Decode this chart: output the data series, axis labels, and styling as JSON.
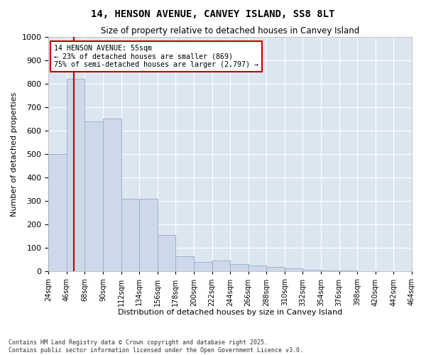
{
  "title": "14, HENSON AVENUE, CANVEY ISLAND, SS8 8LT",
  "subtitle": "Size of property relative to detached houses in Canvey Island",
  "xlabel": "Distribution of detached houses by size in Canvey Island",
  "ylabel": "Number of detached properties",
  "annotation_lines": [
    "14 HENSON AVENUE: 55sqm",
    "← 23% of detached houses are smaller (869)",
    "75% of semi-detached houses are larger (2,797) →"
  ],
  "property_sqm": 55,
  "bar_color": "#cdd9ea",
  "bar_edge_color": "#9ab3cc",
  "vline_color": "#c00000",
  "annotation_box_color": "#c00000",
  "background_color": "#dce6f1",
  "grid_color": "#ffffff",
  "fig_background": "#ffffff",
  "bins": [
    24,
    46,
    68,
    90,
    112,
    134,
    156,
    178,
    200,
    222,
    244,
    266,
    288,
    310,
    332,
    354,
    376,
    398,
    420,
    442,
    464
  ],
  "values": [
    500,
    820,
    640,
    650,
    310,
    310,
    155,
    65,
    40,
    47,
    30,
    25,
    18,
    12,
    8,
    5,
    3,
    2,
    1,
    1
  ],
  "ylim": [
    0,
    1000
  ],
  "yticks": [
    0,
    100,
    200,
    300,
    400,
    500,
    600,
    700,
    800,
    900,
    1000
  ],
  "footer": "Contains HM Land Registry data © Crown copyright and database right 2025.\nContains public sector information licensed under the Open Government Licence v3.0."
}
